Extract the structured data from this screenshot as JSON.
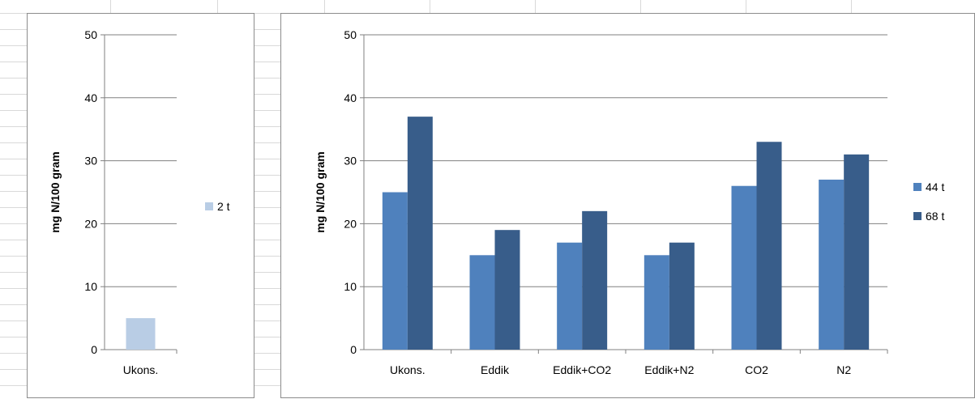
{
  "colors": {
    "sheet_grid": "#d9d9d9",
    "panel_border": "#8c8c8c",
    "gridline": "#808080",
    "series_2t": "#b9cde5",
    "series_44t": "#4f81bd",
    "series_68t": "#385d8a"
  },
  "chart_data": [
    {
      "type": "bar",
      "title": "",
      "xlabel": "",
      "ylabel": "mg N/100 gram",
      "ylim": [
        0,
        50
      ],
      "yticks": [
        "0",
        "10",
        "20",
        "30",
        "40",
        "50"
      ],
      "grid": true,
      "legend_position": "right",
      "categories": [
        "Ukons."
      ],
      "series": [
        {
          "name": "2 t",
          "values": [
            5
          ],
          "color": "#b9cde5"
        }
      ]
    },
    {
      "type": "bar",
      "title": "",
      "xlabel": "",
      "ylabel": "mg N/100 gram",
      "ylim": [
        0,
        50
      ],
      "yticks": [
        "0",
        "10",
        "20",
        "30",
        "40",
        "50"
      ],
      "grid": true,
      "legend_position": "right",
      "categories": [
        "Ukons.",
        "Eddik",
        "Eddik+CO2",
        "Eddik+N2",
        "CO2",
        "N2"
      ],
      "series": [
        {
          "name": "44 t",
          "values": [
            25,
            15,
            17,
            15,
            26,
            27
          ],
          "color": "#4f81bd"
        },
        {
          "name": "68 t",
          "values": [
            37,
            19,
            22,
            17,
            33,
            31
          ],
          "color": "#385d8a"
        }
      ]
    }
  ]
}
